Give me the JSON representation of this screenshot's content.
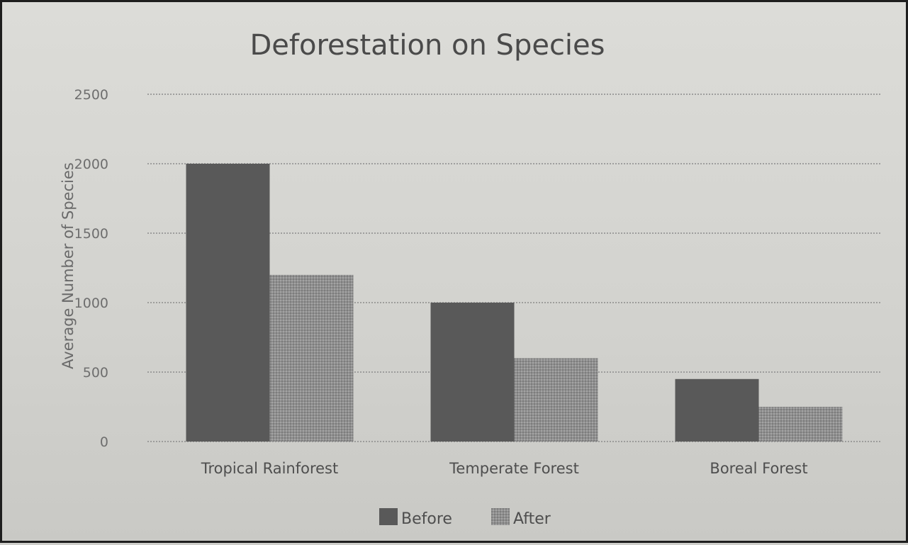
{
  "chart_data": {
    "type": "bar",
    "title": "Deforestation on Species",
    "xlabel": "",
    "ylabel": "Average Number of Species",
    "categories": [
      "Tropical Rainforest",
      "Temperate Forest",
      "Boreal Forest"
    ],
    "series": [
      {
        "name": "Before",
        "values": [
          2000,
          1000,
          450
        ],
        "color": "#595959"
      },
      {
        "name": "After",
        "values": [
          1200,
          600,
          250
        ],
        "color": "#8e8e8e"
      }
    ],
    "ylim": [
      0,
      2500
    ],
    "yticks": [
      0,
      500,
      1000,
      1500,
      2000,
      2500
    ],
    "grid": true,
    "legend_position": "bottom"
  }
}
